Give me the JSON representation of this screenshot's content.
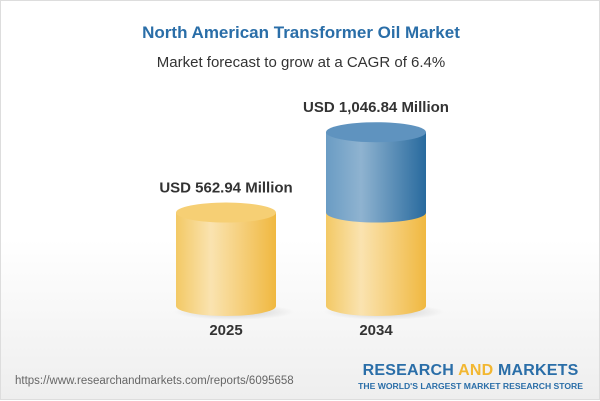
{
  "title": "North American Transformer Oil Market",
  "subtitle": "Market forecast to grow at a CAGR of 6.4%",
  "chart_data": {
    "type": "bar",
    "style": "3d-cylinder",
    "categories": [
      "2025",
      "2034"
    ],
    "values": [
      562.94,
      1046.84
    ],
    "data_labels": [
      "USD 562.94 Million",
      "USD 1,046.84 Million"
    ],
    "unit": "USD Million",
    "colors": {
      "base": "#f2c45a",
      "growth": "#3d78aa"
    }
  },
  "footer": {
    "url": "https://www.researchandmarkets.com/reports/6095658",
    "logo_part1": "RESEARCH ",
    "logo_part2": "AND",
    "logo_part3": " MARKETS",
    "tagline": "THE WORLD'S LARGEST MARKET RESEARCH STORE"
  }
}
